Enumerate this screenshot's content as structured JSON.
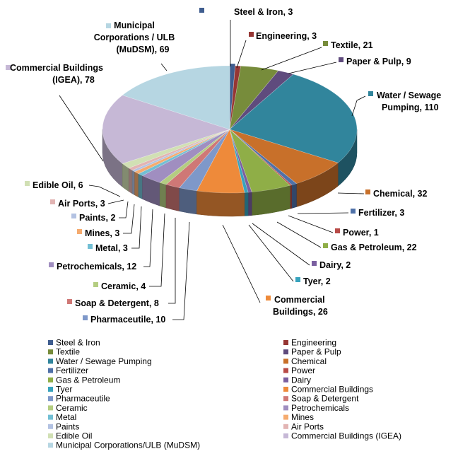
{
  "chart_data": {
    "type": "pie",
    "style": "3d-exploded-first-slice-clockwise-from-top",
    "legend_position": "bottom",
    "title": "",
    "slices": [
      {
        "name": "Steel & Iron",
        "value": 3,
        "color": "#3f5d8f",
        "label": "Steel & Iron, 3"
      },
      {
        "name": "Engineering",
        "value": 3,
        "color": "#963634",
        "label": "Engineering, 3"
      },
      {
        "name": "Textile",
        "value": 21,
        "color": "#778c3b",
        "label": "Textile, 21"
      },
      {
        "name": "Paper & Pulp",
        "value": 9,
        "color": "#5f4b7d",
        "label": "Paper & Pulp, 9"
      },
      {
        "name": "Water / Sewage Pumping",
        "value": 110,
        "color": "#31859c",
        "label": "Water / Sewage Pumping, 110"
      },
      {
        "name": "Chemical",
        "value": 32,
        "color": "#c8702a",
        "label": "Chemical, 32"
      },
      {
        "name": "Fertilizer",
        "value": 3,
        "color": "#4f71a8",
        "label": "Fertilizer, 3"
      },
      {
        "name": "Power",
        "value": 1,
        "color": "#b84b47",
        "label": "Power, 1"
      },
      {
        "name": "Gas & Petroleum",
        "value": 22,
        "color": "#8fae47",
        "label": "Gas & Petroleum, 22"
      },
      {
        "name": "Dairy",
        "value": 2,
        "color": "#7a5fa0",
        "label": "Dairy, 2"
      },
      {
        "name": "Tyer",
        "value": 2,
        "color": "#38a3bd",
        "label": "Tyer, 2"
      },
      {
        "name": "Commercial Buildings",
        "value": 26,
        "color": "#ee8a3a",
        "label": "Commercial Buildings, 26"
      },
      {
        "name": "Pharmaceutile",
        "value": 10,
        "color": "#7e98c9",
        "label": "Pharmaceutile, 10"
      },
      {
        "name": "Soap & Detergent",
        "value": 8,
        "color": "#cf7876",
        "label": "Soap & Detergent, 8"
      },
      {
        "name": "Ceramic",
        "value": 4,
        "color": "#b4cd81",
        "label": "Ceramic, 4"
      },
      {
        "name": "Petrochemicals",
        "value": 12,
        "color": "#a08ec0",
        "label": "Petrochemicals, 12"
      },
      {
        "name": "Metal",
        "value": 3,
        "color": "#72bfd4",
        "label": "Metal, 3"
      },
      {
        "name": "Mines",
        "value": 3,
        "color": "#f5ab6f",
        "label": "Mines, 3"
      },
      {
        "name": "Paints",
        "value": 2,
        "color": "#b3c2e2",
        "label": "Paints, 2"
      },
      {
        "name": "Air Ports",
        "value": 3,
        "color": "#e2b4b3",
        "label": "Air Ports, 3"
      },
      {
        "name": "Edible Oil",
        "value": 6,
        "color": "#d1e0b4",
        "label": "Edible Oil, 6"
      },
      {
        "name": "Commercial Buildings (IGEA)",
        "value": 78,
        "color": "#c6b8d6",
        "label": "Commercial Buildings (IGEA), 78"
      },
      {
        "name": "Municipal Corporations / ULB (MuDSM)",
        "value": 69,
        "color": "#b6d6e2",
        "label": "Municipal Corporations / ULB (MuDSM), 69"
      }
    ],
    "legend": [
      {
        "text": "Steel & Iron",
        "color": "#3f5d8f"
      },
      {
        "text": "Engineering",
        "color": "#963634"
      },
      {
        "text": "Textile",
        "color": "#778c3b"
      },
      {
        "text": "Paper & Pulp",
        "color": "#5f4b7d"
      },
      {
        "text": "Water / Sewage Pumping",
        "color": "#31859c"
      },
      {
        "text": "Chemical",
        "color": "#c8702a"
      },
      {
        "text": "Fertilizer",
        "color": "#4f71a8"
      },
      {
        "text": "Power",
        "color": "#b84b47"
      },
      {
        "text": "Gas & Petroleum",
        "color": "#8fae47"
      },
      {
        "text": "Dairy",
        "color": "#7a5fa0"
      },
      {
        "text": "Tyer",
        "color": "#38a3bd"
      },
      {
        "text": "Commercial Buildings",
        "color": "#ee8a3a"
      },
      {
        "text": "Pharmaceutile",
        "color": "#7e98c9"
      },
      {
        "text": "Soap & Detergent",
        "color": "#cf7876"
      },
      {
        "text": "Ceramic",
        "color": "#b4cd81"
      },
      {
        "text": "Petrochemicals",
        "color": "#a08ec0"
      },
      {
        "text": "Metal",
        "color": "#72bfd4"
      },
      {
        "text": "Mines",
        "color": "#f5ab6f"
      },
      {
        "text": "Paints",
        "color": "#b3c2e2"
      },
      {
        "text": "Air Ports",
        "color": "#e2b4b3"
      },
      {
        "text": "Edible Oil",
        "color": "#d1e0b4"
      },
      {
        "text": "Commercial Buildings (IGEA)",
        "color": "#c6b8d6"
      },
      {
        "text": "Municipal Corporations/ULB (MuDSM)",
        "color": "#b6d6e2"
      }
    ]
  }
}
